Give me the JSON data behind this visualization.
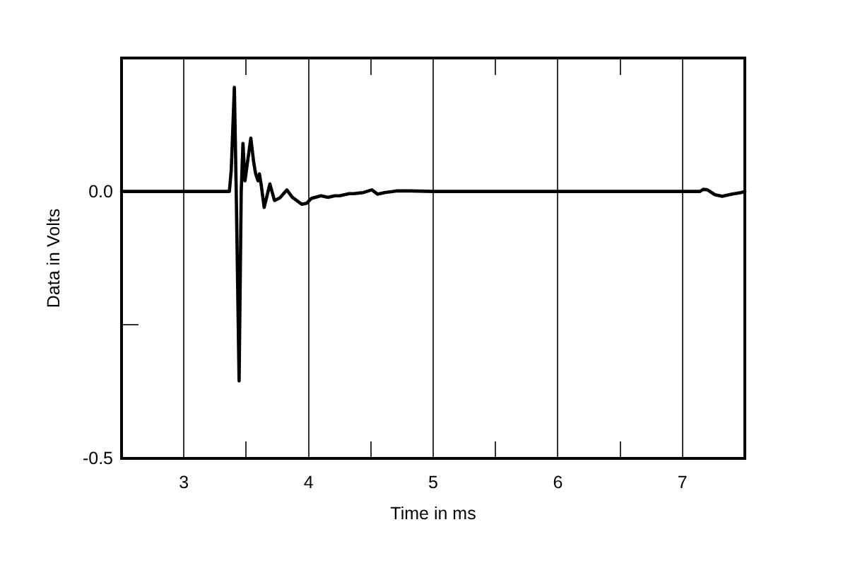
{
  "chart_data": {
    "type": "line",
    "xlabel": "Time in ms",
    "ylabel": "Data in Volts",
    "xlim": [
      2.5,
      7.5
    ],
    "ylim": [
      -0.5,
      0.25
    ],
    "xticks": [
      3,
      {
        "value": 3.5,
        "label": null
      },
      4,
      {
        "value": 4.5,
        "label": null
      },
      5,
      {
        "value": 5.5,
        "label": null
      },
      6,
      {
        "value": 6.5,
        "label": null
      },
      7
    ],
    "yticks": [
      {
        "value": -0.5,
        "label": "-0.5"
      },
      {
        "value": -0.25,
        "label": null
      },
      {
        "value": 0,
        "label": "0.0"
      }
    ],
    "grid": "x",
    "series": [
      {
        "color": "#000000",
        "x": [
          2.5,
          3.365,
          3.38,
          3.405,
          3.42,
          3.443,
          3.46,
          3.474,
          3.49,
          3.537,
          3.56,
          3.576,
          3.595,
          3.606,
          3.62,
          3.644,
          3.69,
          3.727,
          3.77,
          3.826,
          3.87,
          3.947,
          3.985,
          4.023,
          4.1,
          4.156,
          4.21,
          4.25,
          4.326,
          4.364,
          4.44,
          4.508,
          4.553,
          4.61,
          4.705,
          4.818,
          5.0,
          5.5,
          6.0,
          6.5,
          7.0,
          7.14,
          7.167,
          7.2,
          7.26,
          7.318,
          7.394,
          7.469,
          7.5
        ],
        "values": [
          0,
          0,
          0.04,
          0.195,
          0,
          -0.355,
          0,
          0.09,
          0.02,
          0.1,
          0.055,
          0.033,
          0.02,
          0.033,
          0.013,
          -0.03,
          0.014,
          -0.017,
          -0.012,
          0.003,
          -0.011,
          -0.024,
          -0.022,
          -0.013,
          -0.008,
          -0.011,
          -0.008,
          -0.008,
          -0.004,
          -0.004,
          -0.002,
          0.003,
          -0.005,
          -0.002,
          0.001,
          0.001,
          0,
          0,
          0,
          0,
          0,
          0,
          0.004,
          0.003,
          -0.006,
          -0.009,
          -0.005,
          -0.002,
          0
        ]
      }
    ]
  }
}
